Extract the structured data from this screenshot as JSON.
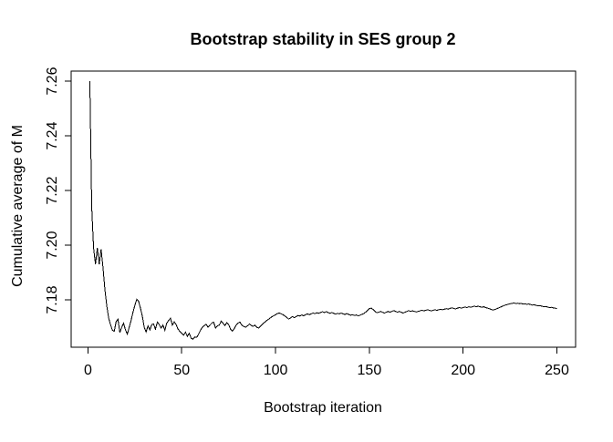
{
  "chart_data": {
    "type": "line",
    "title": "Bootstrap stability in SES group 2",
    "xlabel": "Bootstrap iteration",
    "ylabel": "Cumulative average of M",
    "x_ticks": [
      0,
      50,
      100,
      150,
      200,
      250
    ],
    "x_tick_labels": [
      "0",
      "50",
      "100",
      "150",
      "200",
      "250"
    ],
    "y_ticks": [
      7.18,
      7.2,
      7.22,
      7.24,
      7.26
    ],
    "y_tick_labels": [
      "7.18",
      "7.20",
      "7.22",
      "7.24",
      "7.26"
    ],
    "xlim": [
      -8.96,
      259.96
    ],
    "ylim": [
      7.1627,
      7.2637
    ],
    "grid": false,
    "legend": "none",
    "line_color": "#000000",
    "background_color": "#ffffff",
    "series": [
      {
        "name": "cumulative average of M",
        "x_start": 1,
        "values": [
          7.26,
          7.214,
          7.199,
          7.193,
          7.199,
          7.193,
          7.1985,
          7.192,
          7.184,
          7.178,
          7.1735,
          7.171,
          7.169,
          7.1685,
          7.172,
          7.173,
          7.168,
          7.17,
          7.1715,
          7.169,
          7.1675,
          7.17,
          7.1725,
          7.1755,
          7.178,
          7.1802,
          7.1795,
          7.177,
          7.174,
          7.17,
          7.1683,
          7.1705,
          7.169,
          7.171,
          7.1712,
          7.1693,
          7.1719,
          7.171,
          7.1697,
          7.1708,
          7.1689,
          7.1715,
          7.1725,
          7.1733,
          7.1708,
          7.172,
          7.171,
          7.1693,
          7.1685,
          7.1678,
          7.1671,
          7.1682,
          7.1667,
          7.1678,
          7.166,
          7.1656,
          7.1665,
          7.1663,
          7.1675,
          7.1689,
          7.17,
          7.1706,
          7.1711,
          7.17,
          7.1708,
          7.1715,
          7.1719,
          7.1697,
          7.1705,
          7.1708,
          7.1722,
          7.1715,
          7.1706,
          7.1717,
          7.171,
          7.1693,
          7.1686,
          7.1695,
          7.1708,
          7.1715,
          7.1719,
          7.1708,
          7.1703,
          7.17,
          7.1705,
          7.1712,
          7.1707,
          7.1703,
          7.1708,
          7.17,
          7.1697,
          7.1704,
          7.1711,
          7.1717,
          7.1723,
          7.1728,
          7.1733,
          7.1738,
          7.1742,
          7.1746,
          7.175,
          7.1752,
          7.1749,
          7.1746,
          7.1741,
          7.1736,
          7.173,
          7.1734,
          7.1739,
          7.1735,
          7.1739,
          7.1743,
          7.1741,
          7.1745,
          7.1742,
          7.1746,
          7.1749,
          7.1746,
          7.1749,
          7.1752,
          7.175,
          7.1753,
          7.1751,
          7.1754,
          7.1757,
          7.1754,
          7.1757,
          7.1754,
          7.1751,
          7.1754,
          7.1751,
          7.1748,
          7.1751,
          7.1749,
          7.1752,
          7.1749,
          7.1747,
          7.175,
          7.1747,
          7.1744,
          7.1746,
          7.1743,
          7.1745,
          7.1742,
          7.1744,
          7.1747,
          7.175,
          7.1755,
          7.1762,
          7.1768,
          7.177,
          7.1765,
          7.1758,
          7.1753,
          7.1755,
          7.1758,
          7.1755,
          7.1752,
          7.1755,
          7.1758,
          7.1755,
          7.1758,
          7.1761,
          7.1758,
          7.1755,
          7.1758,
          7.1755,
          7.1752,
          7.1755,
          7.1758,
          7.1761,
          7.1758,
          7.176,
          7.1758,
          7.1756,
          7.1758,
          7.176,
          7.1762,
          7.176,
          7.1762,
          7.1764,
          7.1762,
          7.176,
          7.1762,
          7.1764,
          7.1762,
          7.1764,
          7.1766,
          7.1764,
          7.1766,
          7.1768,
          7.1766,
          7.1769,
          7.1771,
          7.1769,
          7.1767,
          7.177,
          7.1772,
          7.177,
          7.1772,
          7.1774,
          7.1772,
          7.1775,
          7.1773,
          7.1775,
          7.1777,
          7.1775,
          7.1777,
          7.1775,
          7.1773,
          7.1775,
          7.1772,
          7.177,
          7.1768,
          7.1765,
          7.1763,
          7.1765,
          7.1768,
          7.1771,
          7.1774,
          7.1777,
          7.178,
          7.1782,
          7.1784,
          7.1786,
          7.1787,
          7.1789,
          7.1787,
          7.1788,
          7.1786,
          7.1787,
          7.1785,
          7.1786,
          7.1784,
          7.1785,
          7.1783,
          7.1781,
          7.1782,
          7.178,
          7.1778,
          7.1779,
          7.1777,
          7.1775,
          7.1776,
          7.1774,
          7.1772,
          7.1773,
          7.1771,
          7.177,
          7.1768
        ]
      }
    ]
  }
}
